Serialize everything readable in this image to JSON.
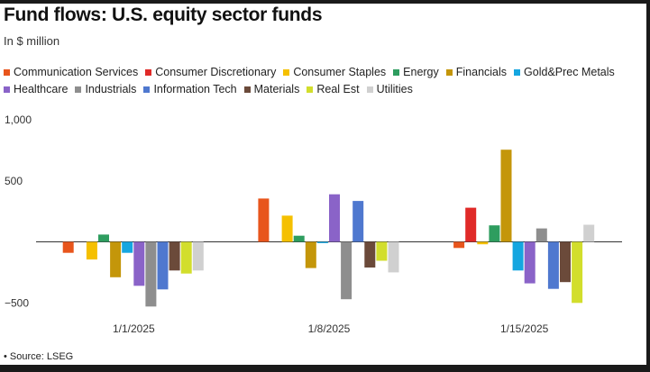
{
  "header": {
    "title": "Fund flows: U.S. equity sector funds",
    "subtitle": "In $ million"
  },
  "footer": {
    "source": "• Source: LSEG"
  },
  "chart_data": {
    "type": "bar",
    "title": "Fund flows: U.S. equity sector funds",
    "subtitle": "In $ million",
    "xlabel": "",
    "ylabel": "",
    "ylim": [
      -500,
      1000
    ],
    "yticks": [
      {
        "value": 1000,
        "label": "1,000"
      },
      {
        "value": 500,
        "label": "500"
      },
      {
        "value": -500,
        "label": "−500"
      }
    ],
    "grid": false,
    "legend_position": "top",
    "categories": [
      "1/1/2025",
      "1/8/2025",
      "1/15/2025"
    ],
    "series": [
      {
        "name": "Communication Services",
        "color": "#e8551c",
        "values": [
          -90,
          355,
          -50
        ]
      },
      {
        "name": "Consumer Discretionary",
        "color": "#e02a28",
        "values": [
          0,
          0,
          280
        ]
      },
      {
        "name": "Consumer Staples",
        "color": "#f5c000",
        "values": [
          -145,
          215,
          -20
        ]
      },
      {
        "name": "Energy",
        "color": "#2e9d5f",
        "values": [
          60,
          50,
          135
        ]
      },
      {
        "name": "Financials",
        "color": "#c4960a",
        "values": [
          -290,
          -215,
          755
        ]
      },
      {
        "name": "Gold&Prec Metals",
        "color": "#15a6e0",
        "values": [
          -90,
          -10,
          -235
        ]
      },
      {
        "name": "Healthcare",
        "color": "#8a63c8",
        "values": [
          -360,
          390,
          -340
        ]
      },
      {
        "name": "Industrials",
        "color": "#8e8e8e",
        "values": [
          -530,
          -470,
          110
        ]
      },
      {
        "name": "Information Tech",
        "color": "#4f78cf",
        "values": [
          -390,
          335,
          -385
        ]
      },
      {
        "name": "Materials",
        "color": "#6b4a3a",
        "values": [
          -235,
          -210,
          -330
        ]
      },
      {
        "name": "Real Est",
        "color": "#d2de2c",
        "values": [
          -260,
          -155,
          -500
        ]
      },
      {
        "name": "Utilities",
        "color": "#d0d0d0",
        "values": [
          -235,
          -250,
          140
        ]
      }
    ]
  }
}
